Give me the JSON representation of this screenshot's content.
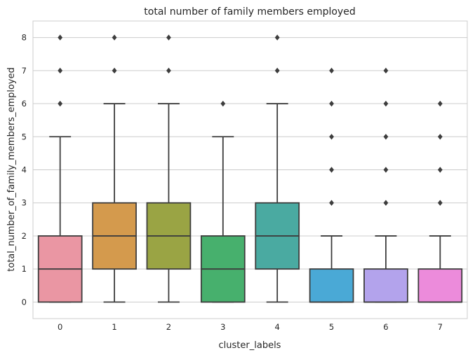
{
  "chart_data": {
    "type": "boxplot",
    "title": "total number of family members employed",
    "xlabel": "cluster_labels",
    "ylabel": "total_number_of_family_members_employed",
    "ylim": [
      -0.5,
      8.5
    ],
    "yticks": [
      0,
      1,
      2,
      3,
      4,
      5,
      6,
      7,
      8
    ],
    "grid": "horizontal",
    "categories": [
      "0",
      "1",
      "2",
      "3",
      "4",
      "5",
      "6",
      "7"
    ],
    "boxes": [
      {
        "category": "0",
        "whislo": 0,
        "q1": 0,
        "med": 1,
        "q3": 2,
        "whishi": 5,
        "fliers": [
          6,
          7,
          8
        ],
        "color": "#ea96a3"
      },
      {
        "category": "1",
        "whislo": 0,
        "q1": 1,
        "med": 2,
        "q3": 3,
        "whishi": 6,
        "fliers": [
          7,
          8
        ],
        "color": "#d49a4d"
      },
      {
        "category": "2",
        "whislo": 0,
        "q1": 1,
        "med": 2,
        "q3": 3,
        "whishi": 6,
        "fliers": [
          7,
          8
        ],
        "color": "#9aa444"
      },
      {
        "category": "3",
        "whislo": 0,
        "q1": 0,
        "med": 1,
        "q3": 2,
        "whishi": 5,
        "fliers": [
          6
        ],
        "color": "#47b06d"
      },
      {
        "category": "4",
        "whislo": 0,
        "q1": 1,
        "med": 2,
        "q3": 3,
        "whishi": 6,
        "fliers": [
          7,
          8
        ],
        "color": "#4aaaa1"
      },
      {
        "category": "5",
        "whislo": 0,
        "q1": 0,
        "med": 0,
        "q3": 1,
        "whishi": 2,
        "fliers": [
          3,
          4,
          5,
          6,
          7
        ],
        "color": "#4aa9d6"
      },
      {
        "category": "6",
        "whislo": 0,
        "q1": 0,
        "med": 0,
        "q3": 1,
        "whishi": 2,
        "fliers": [
          3,
          4,
          5,
          6,
          7
        ],
        "color": "#b3a3ec"
      },
      {
        "category": "7",
        "whislo": 0,
        "q1": 0,
        "med": 0,
        "q3": 1,
        "whishi": 2,
        "fliers": [
          3,
          4,
          5,
          6
        ],
        "color": "#ec8bdb"
      }
    ]
  },
  "colors": {
    "edge": "#3d3d3d",
    "grid": "#cccccc",
    "spine": "#cccccc"
  }
}
